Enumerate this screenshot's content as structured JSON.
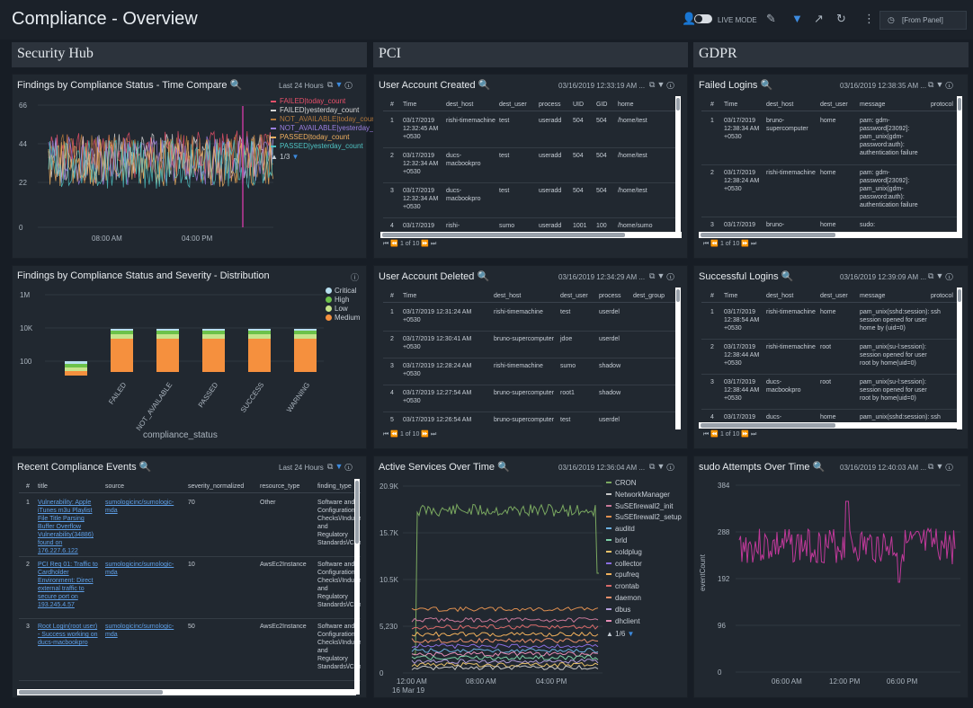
{
  "header": {
    "title": "Compliance - Overview",
    "live_mode": "LIVE MODE",
    "time_range": "[From Panel]"
  },
  "sections": {
    "security_hub": "Security Hub",
    "pci": "PCI",
    "gdpr": "GDPR"
  },
  "panels": {
    "findings_time": {
      "title": "Findings by Compliance Status - Time Compare",
      "meta": "Last 24 Hours",
      "legend": [
        "FAILED|today_count",
        "FAILED|yesterday_count",
        "NOT_AVAILABLE|today_count",
        "NOT_AVAILABLE|yesterday_count",
        "PASSED|today_count",
        "PASSED|yesterday_count"
      ],
      "legend_colors": [
        "#e8506a",
        "#d6d6d6",
        "#b5793c",
        "#9b7fe0",
        "#f0b060",
        "#4fc3c3"
      ],
      "legend_page": "1/3",
      "yticks": [
        "66",
        "44",
        "22",
        "0"
      ],
      "xticks": [
        "08:00 AM",
        "04:00 PM"
      ]
    },
    "findings_dist": {
      "title": "Findings by Compliance Status and Severity - Distribution",
      "legend": [
        "Critical",
        "High",
        "Low",
        "Medium"
      ],
      "legend_colors": [
        "#b8e0f0",
        "#6cc24a",
        "#c6e48b",
        "#f5903e"
      ],
      "yticks": [
        "1M",
        "10K",
        "100"
      ],
      "categories": [
        "FAILED",
        "NOT_AVAILABLE",
        "PASSED",
        "SUCCESS",
        "WARNING"
      ],
      "xlabel": "compliance_status"
    },
    "recent_events": {
      "title": "Recent Compliance Events",
      "meta": "Last 24 Hours",
      "columns": [
        "#",
        "title",
        "source",
        "severity_normalized",
        "resource_type",
        "finding_type"
      ],
      "rows": [
        {
          "n": "1",
          "title": "Vulnerability: Apple iTunes m3u Playlist File Title Parsing Buffer Overflow Vulnerability(34886) found on 176.227.6.122",
          "source": "sumologicinc/sumologic-mda",
          "sev": "70",
          "res": "Other",
          "ft": "Software and Configuration Checks\\/Industry and Regulatory Standards\\/Controls"
        },
        {
          "n": "2",
          "title": "PCI Req 01: Traffic to Cardholder Environment: Direct external traffic to secure port on 193.245.4.57",
          "source": "sumologicinc/sumologic-mda",
          "sev": "10",
          "res": "AwsEc2Instance",
          "ft": "Software and Configuration Checks\\/Industry and Regulatory Standards\\/Controls"
        },
        {
          "n": "3",
          "title": "Root Login(root user) - Success working on ducs-macbookpro",
          "source": "sumologicinc/sumologic-mda",
          "sev": "50",
          "res": "AwsEc2Instance",
          "ft": "Software and Configuration Checks\\/Industry and Regulatory Standards\\/Controls"
        }
      ]
    },
    "user_created": {
      "title": "User Account Created",
      "meta": "03/16/2019 12:33:19 AM ...",
      "columns": [
        "#",
        "Time",
        "dest_host",
        "dest_user",
        "process",
        "UID",
        "GID",
        "home"
      ],
      "rows": [
        {
          "n": "1",
          "time": "03/17/2019 12:32:45 AM +0530",
          "host": "rishi-timemachine",
          "user": "test",
          "proc": "useradd",
          "uid": "504",
          "gid": "504",
          "home": "/home/test"
        },
        {
          "n": "2",
          "time": "03/17/2019 12:32:34 AM +0530",
          "host": "ducs-macbookpro",
          "user": "test",
          "proc": "useradd",
          "uid": "504",
          "gid": "504",
          "home": "/home/test"
        },
        {
          "n": "3",
          "time": "03/17/2019 12:32:34 AM +0530",
          "host": "ducs-macbookpro",
          "user": "test",
          "proc": "useradd",
          "uid": "504",
          "gid": "504",
          "home": "/home/test"
        },
        {
          "n": "4",
          "time": "03/17/2019",
          "host": "rishi-",
          "user": "sumo",
          "proc": "useradd",
          "uid": "1001",
          "gid": "100",
          "home": "/home/sumo"
        }
      ],
      "pager": "1    of  10"
    },
    "user_deleted": {
      "title": "User Account Deleted",
      "meta": "03/16/2019 12:34:29 AM ...",
      "columns": [
        "#",
        "Time",
        "dest_host",
        "dest_user",
        "process",
        "dest_group"
      ],
      "rows": [
        {
          "n": "1",
          "time": "03/17/2019 12:31:24 AM +0530",
          "host": "rishi-timemachine",
          "user": "test",
          "proc": "userdel"
        },
        {
          "n": "2",
          "time": "03/17/2019 12:30:41 AM +0530",
          "host": "bruno-supercomputer",
          "user": "jdoe",
          "proc": "userdel"
        },
        {
          "n": "3",
          "time": "03/17/2019 12:28:24 AM +0530",
          "host": "rishi-timemachine",
          "user": "sumo",
          "proc": "shadow"
        },
        {
          "n": "4",
          "time": "03/17/2019 12:27:54 AM +0530",
          "host": "bruno-supercomputer",
          "user": "root1",
          "proc": "shadow"
        },
        {
          "n": "5",
          "time": "03/17/2019 12:26:54 AM +0530",
          "host": "bruno-supercomputer",
          "user": "test",
          "proc": "userdel"
        }
      ],
      "pager": "1    of  10"
    },
    "active_services": {
      "title": "Active Services Over Time",
      "meta": "03/16/2019 12:36:04 AM ...",
      "legend": [
        "CRON",
        "NetworkManager",
        "SuSEfirewall2_init",
        "SuSEfirewall2_setup",
        "auditd",
        "brld",
        "coldplug",
        "collector",
        "cpufreq",
        "crontab",
        "daemon",
        "dbus",
        "dhclient"
      ],
      "legend_colors": [
        "#7aa860",
        "#c8c8c8",
        "#c97a9a",
        "#e09050",
        "#6cb0e0",
        "#7dd3a8",
        "#e8c26a",
        "#8a6de0",
        "#f2b15c",
        "#d96a6a",
        "#ea8f6b",
        "#b39ddb",
        "#e58db6"
      ],
      "legend_page": "1/6",
      "yticks": [
        "20.9K",
        "15.7K",
        "10.5K",
        "5,230",
        "0"
      ],
      "xticks": [
        "12:00 AM",
        "08:00 AM",
        "04:00 PM"
      ],
      "xsub": "16 Mar 19"
    },
    "failed_logins": {
      "title": "Failed Logins",
      "meta": "03/16/2019 12:38:35 AM ...",
      "columns": [
        "#",
        "Time",
        "dest_host",
        "dest_user",
        "message",
        "protocol"
      ],
      "rows": [
        {
          "n": "1",
          "time": "03/17/2019 12:38:34 AM +0530",
          "host": "bruno-supercomputer",
          "user": "home",
          "msg": "pam: gdm-password[23092]: pam_unix(gdm-password:auth): authentication failure"
        },
        {
          "n": "2",
          "time": "03/17/2019 12:38:24 AM +0530",
          "host": "rishi-timemachine",
          "user": "home",
          "msg": "pam: gdm-password[23092]: pam_unix(gdm-password:auth): authentication failure"
        },
        {
          "n": "3",
          "time": "03/17/2019",
          "host": "bruno-",
          "user": "home",
          "msg": "sudo:"
        }
      ],
      "pager": "1    of  10"
    },
    "successful_logins": {
      "title": "Successful Logins",
      "meta": "03/16/2019 12:39:09 AM ...",
      "columns": [
        "#",
        "Time",
        "dest_host",
        "dest_user",
        "message",
        "protocol"
      ],
      "rows": [
        {
          "n": "1",
          "time": "03/17/2019 12:38:54 AM +0530",
          "host": "rishi-timemachine",
          "user": "home",
          "msg": "pam_unix(sshd:session): session opened for user home by (uid=0)",
          "proto": "ssh"
        },
        {
          "n": "2",
          "time": "03/17/2019 12:38:44 AM +0530",
          "host": "rishi-timemachine",
          "user": "root",
          "msg": "pam_unix(su-l:session): session opened for user root by home(uid=0)",
          "proto": ""
        },
        {
          "n": "3",
          "time": "03/17/2019 12:38:44 AM +0530",
          "host": "ducs-macbookpro",
          "user": "root",
          "msg": "pam_unix(su-l:session): session opened for user root by home(uid=0)",
          "proto": ""
        },
        {
          "n": "4",
          "time": "03/17/2019",
          "host": "ducs-",
          "user": "home",
          "msg": "pam_unix(sshd:session):",
          "proto": "ssh"
        }
      ],
      "pager": "1    of  10"
    },
    "sudo_attempts": {
      "title": "sudo Attempts Over Time",
      "meta": "03/16/2019 12:40:03 AM ...",
      "yticks": [
        "384",
        "288",
        "192",
        "96",
        "0"
      ],
      "xticks": [
        "06:00 AM",
        "12:00 PM",
        "06:00 PM"
      ],
      "ylabel": "eventCount",
      "line_color": "#c0399a"
    }
  }
}
